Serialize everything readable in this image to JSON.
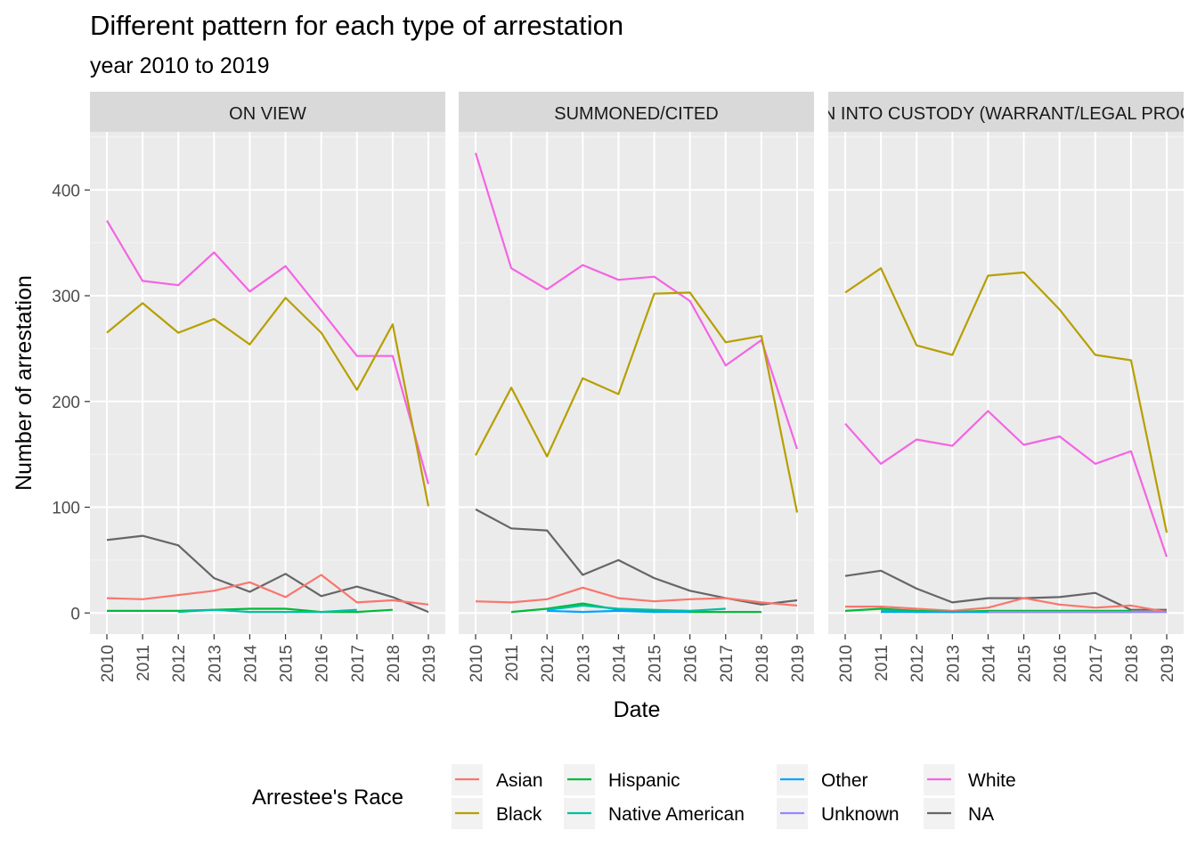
{
  "chart_data": {
    "type": "line",
    "title": "Different pattern for each type of arrestation",
    "subtitle": "year 2010 to 2019",
    "xlabel": "Date",
    "ylabel": "Number of arrestation",
    "x": [
      "2010",
      "2011",
      "2012",
      "2013",
      "2014",
      "2015",
      "2016",
      "2017",
      "2018",
      "2019"
    ],
    "ylim": [
      -20,
      455
    ],
    "yticks": [
      0,
      100,
      200,
      300,
      400
    ],
    "grid": true,
    "legend": {
      "title": "Arrestee's Race",
      "placement": "bottom",
      "items": [
        "Asian",
        "Black",
        "Hispanic",
        "Native American",
        "Other",
        "Unknown",
        "White",
        "NA"
      ]
    },
    "colors": {
      "Asian": "#F8766D",
      "Black": "#B79F00",
      "Hispanic": "#00BA38",
      "Native American": "#00BFA4",
      "Other": "#00A5FF",
      "Unknown": "#9B85FF",
      "White": "#F564E3",
      "NA": "#666666"
    },
    "panels": [
      {
        "label": "ON VIEW",
        "series": [
          {
            "name": "White",
            "values": [
              371,
              314,
              310,
              341,
              304,
              328,
              286,
              243,
              243,
              122
            ]
          },
          {
            "name": "Black",
            "values": [
              265,
              293,
              265,
              278,
              254,
              298,
              265,
              211,
              273,
              101
            ]
          },
          {
            "name": "NA",
            "values": [
              69,
              73,
              64,
              33,
              20,
              37,
              16,
              25,
              15,
              1
            ]
          },
          {
            "name": "Asian",
            "values": [
              14,
              13,
              17,
              21,
              29,
              15,
              36,
              10,
              12,
              8
            ]
          },
          {
            "name": "Hispanic",
            "values": [
              2,
              2,
              2,
              3,
              4,
              4,
              1,
              1,
              3,
              null
            ]
          },
          {
            "name": "Native American",
            "values": [
              null,
              null,
              1,
              3,
              1,
              1,
              1,
              3,
              null,
              null
            ]
          }
        ]
      },
      {
        "label": "SUMMONED/CITED",
        "series": [
          {
            "name": "White",
            "values": [
              435,
              326,
              306,
              329,
              315,
              318,
              295,
              234,
              258,
              155
            ]
          },
          {
            "name": "Black",
            "values": [
              149,
              213,
              148,
              222,
              207,
              302,
              303,
              256,
              262,
              95
            ]
          },
          {
            "name": "NA",
            "values": [
              98,
              80,
              78,
              36,
              50,
              33,
              21,
              14,
              8,
              12
            ]
          },
          {
            "name": "Asian",
            "values": [
              11,
              10,
              13,
              24,
              14,
              11,
              13,
              14,
              10,
              7
            ]
          },
          {
            "name": "Hispanic",
            "values": [
              null,
              1,
              4,
              9,
              3,
              2,
              1,
              1,
              1,
              null
            ]
          },
          {
            "name": "Native American",
            "values": [
              null,
              null,
              3,
              7,
              4,
              3,
              2,
              4,
              null,
              null
            ]
          },
          {
            "name": "Other",
            "values": [
              null,
              null,
              2,
              1,
              2,
              1,
              1,
              null,
              null,
              null
            ]
          }
        ]
      },
      {
        "label": "TAKEN INTO CUSTODY (WARRANT/LEGAL PROCESS)",
        "series": [
          {
            "name": "Black",
            "values": [
              303,
              326,
              253,
              244,
              319,
              322,
              287,
              244,
              239,
              76
            ]
          },
          {
            "name": "White",
            "values": [
              179,
              141,
              164,
              158,
              191,
              159,
              167,
              141,
              153,
              53
            ]
          },
          {
            "name": "NA",
            "values": [
              35,
              40,
              23,
              10,
              14,
              14,
              15,
              19,
              3,
              3
            ]
          },
          {
            "name": "Asian",
            "values": [
              6,
              6,
              4,
              2,
              5,
              14,
              8,
              5,
              7,
              1
            ]
          },
          {
            "name": "Hispanic",
            "values": [
              2,
              4,
              2,
              1,
              2,
              2,
              2,
              2,
              2,
              null
            ]
          },
          {
            "name": "Native American",
            "values": [
              null,
              2,
              1,
              1,
              1,
              1,
              1,
              1,
              1,
              null
            ]
          },
          {
            "name": "Other",
            "values": [
              null,
              1,
              1,
              1,
              1,
              1,
              1,
              1,
              1,
              1
            ]
          },
          {
            "name": "Unknown",
            "values": [
              null,
              null,
              null,
              null,
              1,
              1,
              1,
              1,
              1,
              1
            ]
          }
        ]
      }
    ]
  }
}
